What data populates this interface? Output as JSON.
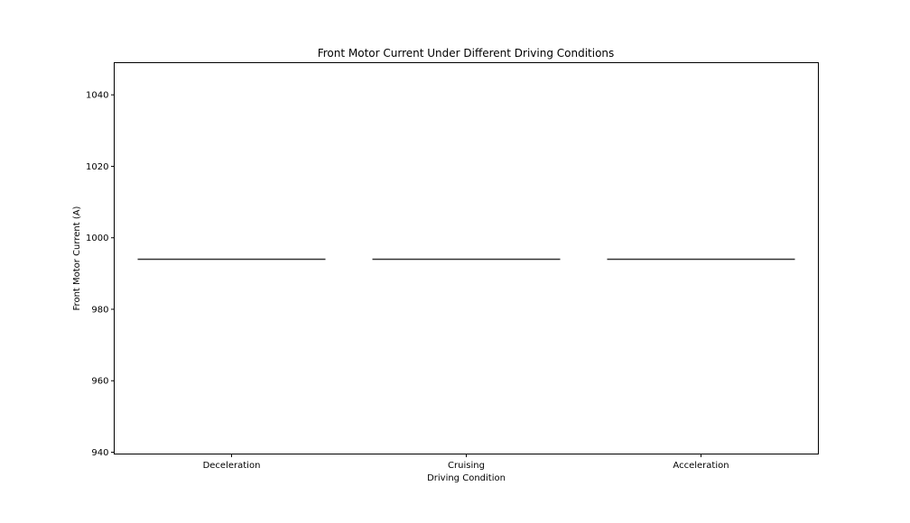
{
  "chart_data": {
    "type": "box",
    "title": "Front Motor Current Under Different Driving Conditions",
    "xlabel": "Driving Condition",
    "ylabel": "Front Motor Current (A)",
    "categories": [
      "Deceleration",
      "Cruising",
      "Acceleration"
    ],
    "values": [
      994,
      994,
      994
    ],
    "ylim": [
      939.5,
      1049
    ],
    "yticks": [
      940,
      960,
      980,
      1000,
      1020,
      1040
    ],
    "grid": false,
    "legend": "none",
    "colors": {
      "axis": "#000000",
      "median": "#333333",
      "background": "#ffffff"
    }
  }
}
